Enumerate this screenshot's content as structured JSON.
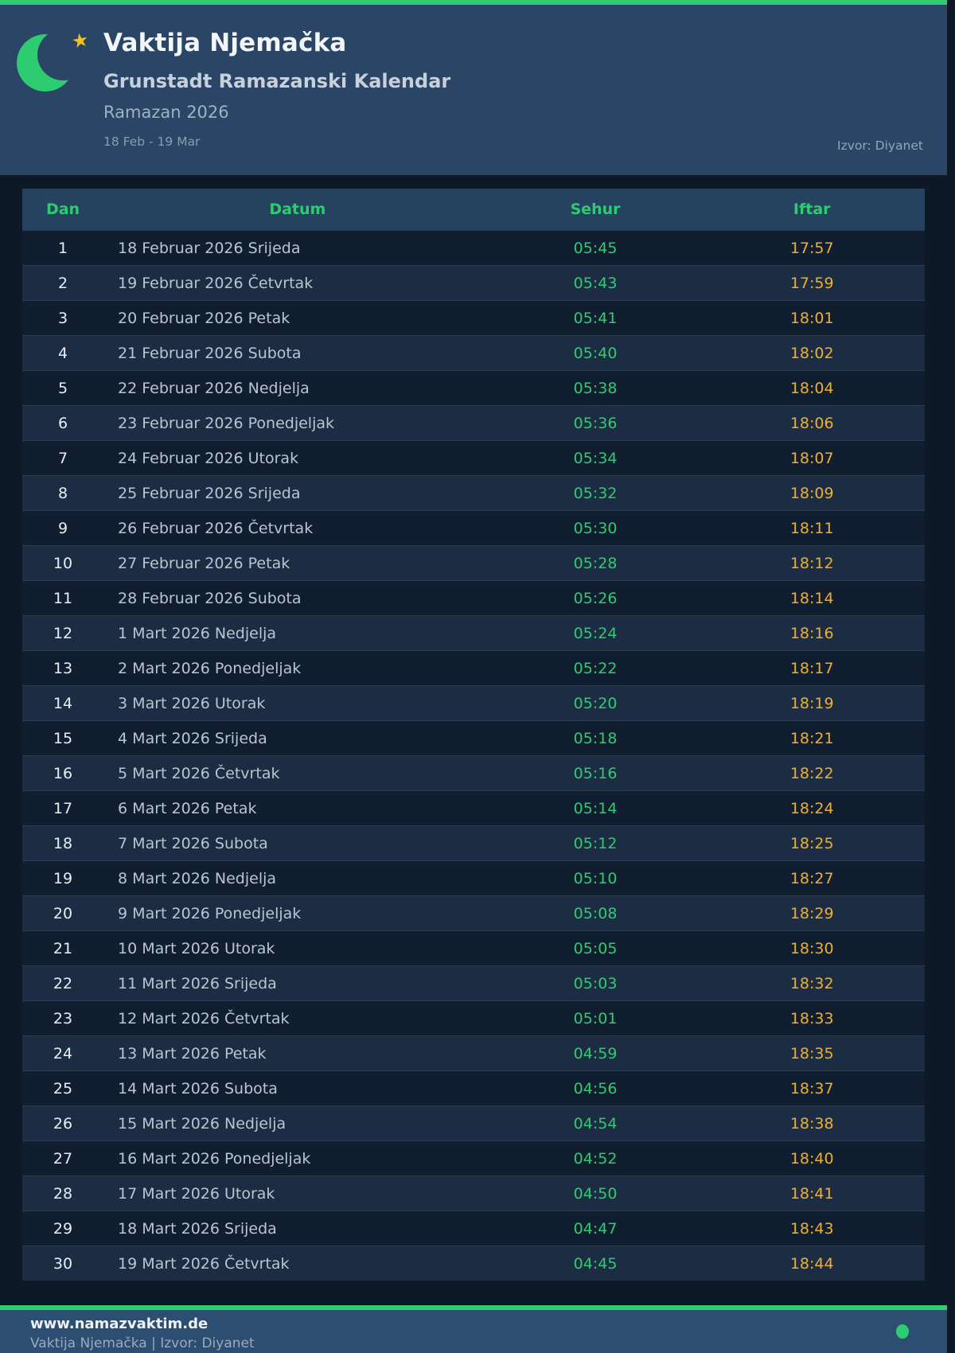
{
  "header": {
    "title": "Vaktija Njemačka",
    "subtitle": "Grunstadt Ramazanski Kalendar",
    "season": "Ramazan 2026",
    "date_range": "18 Feb - 19 Mar",
    "source": "Izvor: Diyanet",
    "moon_icon": "crescent-moon",
    "star_icon": "star"
  },
  "table": {
    "columns": [
      "Dan",
      "Datum",
      "Sehur",
      "Iftar"
    ],
    "rows": [
      {
        "dan": "1",
        "datum": "18 Februar 2026 Srijeda",
        "sehur": "05:45",
        "iftar": "17:57"
      },
      {
        "dan": "2",
        "datum": "19 Februar 2026 Četvrtak",
        "sehur": "05:43",
        "iftar": "17:59"
      },
      {
        "dan": "3",
        "datum": "20 Februar 2026 Petak",
        "sehur": "05:41",
        "iftar": "18:01"
      },
      {
        "dan": "4",
        "datum": "21 Februar 2026 Subota",
        "sehur": "05:40",
        "iftar": "18:02"
      },
      {
        "dan": "5",
        "datum": "22 Februar 2026 Nedjelja",
        "sehur": "05:38",
        "iftar": "18:04"
      },
      {
        "dan": "6",
        "datum": "23 Februar 2026 Ponedjeljak",
        "sehur": "05:36",
        "iftar": "18:06"
      },
      {
        "dan": "7",
        "datum": "24 Februar 2026 Utorak",
        "sehur": "05:34",
        "iftar": "18:07"
      },
      {
        "dan": "8",
        "datum": "25 Februar 2026 Srijeda",
        "sehur": "05:32",
        "iftar": "18:09"
      },
      {
        "dan": "9",
        "datum": "26 Februar 2026 Četvrtak",
        "sehur": "05:30",
        "iftar": "18:11"
      },
      {
        "dan": "10",
        "datum": "27 Februar 2026 Petak",
        "sehur": "05:28",
        "iftar": "18:12"
      },
      {
        "dan": "11",
        "datum": "28 Februar 2026 Subota",
        "sehur": "05:26",
        "iftar": "18:14"
      },
      {
        "dan": "12",
        "datum": "1 Mart 2026 Nedjelja",
        "sehur": "05:24",
        "iftar": "18:16"
      },
      {
        "dan": "13",
        "datum": "2 Mart 2026 Ponedjeljak",
        "sehur": "05:22",
        "iftar": "18:17"
      },
      {
        "dan": "14",
        "datum": "3 Mart 2026 Utorak",
        "sehur": "05:20",
        "iftar": "18:19"
      },
      {
        "dan": "15",
        "datum": "4 Mart 2026 Srijeda",
        "sehur": "05:18",
        "iftar": "18:21"
      },
      {
        "dan": "16",
        "datum": "5 Mart 2026 Četvrtak",
        "sehur": "05:16",
        "iftar": "18:22"
      },
      {
        "dan": "17",
        "datum": "6 Mart 2026 Petak",
        "sehur": "05:14",
        "iftar": "18:24"
      },
      {
        "dan": "18",
        "datum": "7 Mart 2026 Subota",
        "sehur": "05:12",
        "iftar": "18:25"
      },
      {
        "dan": "19",
        "datum": "8 Mart 2026 Nedjelja",
        "sehur": "05:10",
        "iftar": "18:27"
      },
      {
        "dan": "20",
        "datum": "9 Mart 2026 Ponedjeljak",
        "sehur": "05:08",
        "iftar": "18:29"
      },
      {
        "dan": "21",
        "datum": "10 Mart 2026 Utorak",
        "sehur": "05:05",
        "iftar": "18:30"
      },
      {
        "dan": "22",
        "datum": "11 Mart 2026 Srijeda",
        "sehur": "05:03",
        "iftar": "18:32"
      },
      {
        "dan": "23",
        "datum": "12 Mart 2026 Četvrtak",
        "sehur": "05:01",
        "iftar": "18:33"
      },
      {
        "dan": "24",
        "datum": "13 Mart 2026 Petak",
        "sehur": "04:59",
        "iftar": "18:35"
      },
      {
        "dan": "25",
        "datum": "14 Mart 2026 Subota",
        "sehur": "04:56",
        "iftar": "18:37"
      },
      {
        "dan": "26",
        "datum": "15 Mart 2026 Nedjelja",
        "sehur": "04:54",
        "iftar": "18:38"
      },
      {
        "dan": "27",
        "datum": "16 Mart 2026 Ponedjeljak",
        "sehur": "04:52",
        "iftar": "18:40"
      },
      {
        "dan": "28",
        "datum": "17 Mart 2026 Utorak",
        "sehur": "04:50",
        "iftar": "18:41"
      },
      {
        "dan": "29",
        "datum": "18 Mart 2026 Srijeda",
        "sehur": "04:47",
        "iftar": "18:43"
      },
      {
        "dan": "30",
        "datum": "19 Mart 2026 Četvrtak",
        "sehur": "04:45",
        "iftar": "18:44"
      }
    ]
  },
  "footer": {
    "website": "www.namazvaktim.de",
    "tagline": "Vaktija Njemačka | Izvor: Diyanet",
    "status_icon": "green-dot"
  },
  "colors": {
    "accent_green": "#2ecc71",
    "accent_orange": "#f0ae2e",
    "header_bg": "#2a4565",
    "footer_bg": "#2c4e71",
    "page_bg": "#0d1927",
    "row_odd": "#111e2f",
    "row_even": "#1c2c43",
    "thead_bg": "#254260",
    "star_gold": "#f2c21a"
  }
}
